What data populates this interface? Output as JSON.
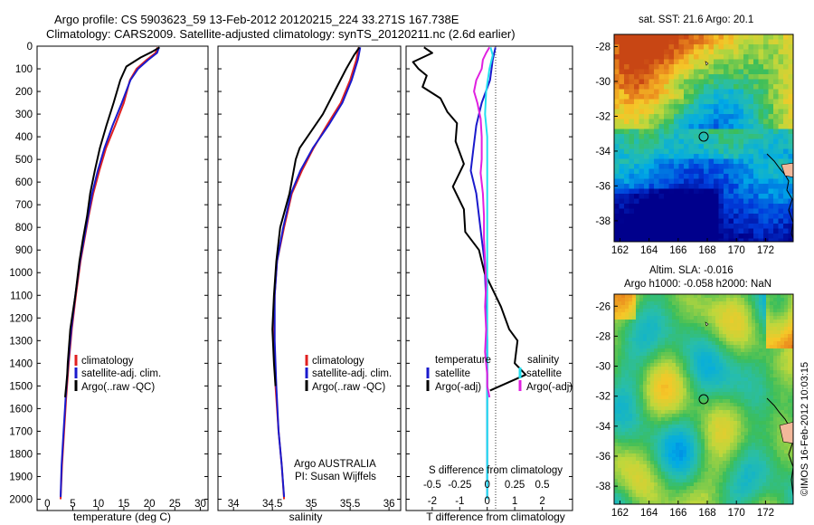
{
  "header": {
    "line1": "Argo profile: CS 5903623_59 13-Feb-2012 20120215_224 33.271S 167.738E",
    "line2": "Climatology: CARS2009. Satellite-adjusted climatology: synTS_20120211.nc (2.6d earlier)"
  },
  "footer_credit": "©IMOS 16-Feb-2012 10:03:15",
  "colors": {
    "climatology": "#e02020",
    "satellite": "#1a1acc",
    "argo": "#000000",
    "satellite_salinity": "#22e0f0",
    "argo_salinity": "#e020e0"
  },
  "chart_data": [
    {
      "id": "temperature",
      "type": "line",
      "xlabel": "temperature (deg C)",
      "xticks": [
        "0",
        "5",
        "10",
        "15",
        "20",
        "25",
        "30"
      ],
      "xlim": [
        -2,
        31.5
      ],
      "ylim": [
        0,
        2050
      ],
      "yticks": [
        "0",
        "100",
        "200",
        "300",
        "400",
        "500",
        "600",
        "700",
        "800",
        "900",
        "1000",
        "1100",
        "1200",
        "1300",
        "1400",
        "1500",
        "1600",
        "1700",
        "1800",
        "1900",
        "2000"
      ],
      "legend": [
        "climatology",
        "satellite-adj. clim.",
        "Argo(..raw -QC)"
      ],
      "series": [
        {
          "name": "climatology",
          "color_key": "climatology",
          "points": [
            [
              21.6,
              5
            ],
            [
              21.2,
              30
            ],
            [
              19.5,
              60
            ],
            [
              17.5,
              100
            ],
            [
              16.2,
              150
            ],
            [
              15,
              250
            ],
            [
              13.3,
              350
            ],
            [
              11.5,
              450
            ],
            [
              10.2,
              550
            ],
            [
              9,
              650
            ],
            [
              8.1,
              750
            ],
            [
              7.3,
              850
            ],
            [
              6.5,
              950
            ],
            [
              5.6,
              1100
            ],
            [
              4.8,
              1250
            ],
            [
              4.2,
              1400
            ],
            [
              3.7,
              1550
            ],
            [
              3.3,
              1700
            ],
            [
              2.9,
              1850
            ],
            [
              2.6,
              2000
            ]
          ]
        },
        {
          "name": "satellite-adj. clim.",
          "color_key": "satellite",
          "points": [
            [
              21.9,
              5
            ],
            [
              21.5,
              30
            ],
            [
              19.8,
              60
            ],
            [
              17.8,
              100
            ],
            [
              16.3,
              150
            ],
            [
              14.6,
              250
            ],
            [
              12.8,
              350
            ],
            [
              11.2,
              450
            ],
            [
              9.9,
              550
            ],
            [
              8.8,
              650
            ],
            [
              8,
              750
            ],
            [
              7.2,
              850
            ],
            [
              6.4,
              950
            ],
            [
              5.5,
              1100
            ],
            [
              4.7,
              1250
            ],
            [
              4.1,
              1400
            ],
            [
              3.6,
              1550
            ],
            [
              3.2,
              1700
            ],
            [
              2.8,
              1850
            ],
            [
              2.6,
              1990
            ]
          ]
        },
        {
          "name": "Argo(..raw -QC)",
          "color_key": "argo",
          "points": [
            [
              22,
              5
            ],
            [
              20.5,
              25
            ],
            [
              18.3,
              50
            ],
            [
              15.5,
              90
            ],
            [
              14.3,
              150
            ],
            [
              13,
              250
            ],
            [
              11.6,
              350
            ],
            [
              10.3,
              450
            ],
            [
              9.3,
              550
            ],
            [
              8.4,
              650
            ],
            [
              7.8,
              750
            ],
            [
              7,
              850
            ],
            [
              6.3,
              950
            ],
            [
              5.5,
              1100
            ],
            [
              4.5,
              1250
            ],
            [
              4,
              1400
            ],
            [
              3.9,
              1450
            ],
            [
              3.7,
              1500
            ],
            [
              3.5,
              1550
            ]
          ]
        }
      ]
    },
    {
      "id": "salinity",
      "type": "line",
      "xlabel": "salinity",
      "xticks": [
        "34",
        "34.5",
        "35",
        "35.5",
        "36"
      ],
      "xlim": [
        33.8,
        36.15
      ],
      "ylim": [
        0,
        2050
      ],
      "legend": [
        "climatology",
        "satellite-adj. clim.",
        "Argo(..raw -QC)"
      ],
      "annotation": [
        "Argo AUSTRALIA",
        "PI: Susan Wijffels"
      ],
      "series": [
        {
          "name": "climatology",
          "color_key": "climatology",
          "points": [
            [
              35.61,
              5
            ],
            [
              35.58,
              60
            ],
            [
              35.5,
              150
            ],
            [
              35.38,
              250
            ],
            [
              35.2,
              350
            ],
            [
              35.03,
              450
            ],
            [
              34.88,
              550
            ],
            [
              34.75,
              650
            ],
            [
              34.65,
              800
            ],
            [
              34.56,
              950
            ],
            [
              34.53,
              1100
            ],
            [
              34.52,
              1300
            ],
            [
              34.54,
              1500
            ],
            [
              34.58,
              1700
            ],
            [
              34.62,
              1850
            ],
            [
              34.65,
              2000
            ]
          ]
        },
        {
          "name": "satellite-adj. clim.",
          "color_key": "satellite",
          "points": [
            [
              35.63,
              5
            ],
            [
              35.6,
              60
            ],
            [
              35.52,
              150
            ],
            [
              35.4,
              250
            ],
            [
              35.22,
              350
            ],
            [
              35.02,
              450
            ],
            [
              34.86,
              550
            ],
            [
              34.74,
              650
            ],
            [
              34.64,
              800
            ],
            [
              34.56,
              950
            ],
            [
              34.53,
              1100
            ],
            [
              34.53,
              1300
            ],
            [
              34.55,
              1500
            ],
            [
              34.58,
              1700
            ],
            [
              34.62,
              1850
            ],
            [
              34.65,
              1990
            ]
          ]
        },
        {
          "name": "Argo(..raw -QC)",
          "color_key": "argo",
          "points": [
            [
              35.62,
              5
            ],
            [
              35.55,
              40
            ],
            [
              35.45,
              100
            ],
            [
              35.3,
              200
            ],
            [
              35.15,
              300
            ],
            [
              34.95,
              400
            ],
            [
              34.85,
              450
            ],
            [
              34.8,
              500
            ],
            [
              34.72,
              650
            ],
            [
              34.6,
              800
            ],
            [
              34.55,
              950
            ],
            [
              34.52,
              1100
            ],
            [
              34.5,
              1250
            ],
            [
              34.52,
              1400
            ],
            [
              34.54,
              1500
            ]
          ]
        }
      ]
    },
    {
      "id": "difference",
      "type": "line",
      "xlabel": "T difference from climatology",
      "xlabel_top": "S difference from climatology",
      "xticks_T": [
        "-2",
        "-1",
        "0",
        "1",
        "2"
      ],
      "xticks_S": [
        "-0.5",
        "-0.25",
        "0",
        "0.25",
        "0.5"
      ],
      "xlim_T": [
        -2.95,
        3.1
      ],
      "ylim": [
        0,
        2050
      ],
      "legend_temperature": {
        "title": "temperature",
        "items": [
          "satellite",
          "Argo(-adj)"
        ]
      },
      "legend_salinity": {
        "title": "salinity",
        "items": [
          "satellite",
          "Argo(-adj)"
        ]
      },
      "series": [
        {
          "name": "temperature satellite",
          "color_key": "satellite",
          "points": [
            [
              0.3,
              5
            ],
            [
              0.2,
              60
            ],
            [
              0.1,
              150
            ],
            [
              -0.2,
              250
            ],
            [
              -0.4,
              350
            ],
            [
              -0.5,
              450
            ],
            [
              -0.6,
              550
            ],
            [
              -0.4,
              650
            ],
            [
              -0.3,
              750
            ],
            [
              -0.2,
              850
            ],
            [
              -0.1,
              950
            ],
            [
              -0.05,
              1100
            ],
            [
              0,
              1300
            ],
            [
              0,
              1500
            ],
            [
              0,
              1700
            ],
            [
              0,
              1850
            ],
            [
              0,
              2000
            ]
          ]
        },
        {
          "name": "temperature Argo(-adj)",
          "color_key": "argo",
          "points": [
            [
              -2.3,
              5
            ],
            [
              -2,
              30
            ],
            [
              -2.7,
              70
            ],
            [
              -2.5,
              100
            ],
            [
              -2.2,
              130
            ],
            [
              -2.35,
              180
            ],
            [
              -1.7,
              230
            ],
            [
              -1.45,
              290
            ],
            [
              -1.1,
              340
            ],
            [
              -1.15,
              420
            ],
            [
              -0.85,
              520
            ],
            [
              -1.25,
              620
            ],
            [
              -0.85,
              720
            ],
            [
              -0.8,
              820
            ],
            [
              -0.3,
              900
            ],
            [
              -0.1,
              1000
            ],
            [
              0.5,
              1150
            ],
            [
              0.8,
              1250
            ],
            [
              1.1,
              1300
            ],
            [
              1.0,
              1400
            ],
            [
              1.4,
              1450
            ],
            [
              0.1,
              1520
            ]
          ]
        },
        {
          "name": "salinity satellite",
          "color_key": "satellite_salinity",
          "points": [
            [
              0.03,
              5
            ],
            [
              0.05,
              40
            ],
            [
              0.02,
              100
            ],
            [
              -0.01,
              200
            ],
            [
              -0.02,
              300
            ],
            [
              0,
              400
            ],
            [
              0,
              600
            ],
            [
              0,
              800
            ],
            [
              0,
              1000
            ],
            [
              0,
              1200
            ],
            [
              0,
              1400
            ],
            [
              0,
              1600
            ],
            [
              0,
              1800
            ],
            [
              0,
              2000
            ]
          ]
        },
        {
          "name": "salinity Argo(-adj)",
          "color_key": "argo_salinity",
          "points": [
            [
              0.02,
              5
            ],
            [
              -0.01,
              30
            ],
            [
              -0.04,
              60
            ],
            [
              -0.05,
              100
            ],
            [
              -0.1,
              150
            ],
            [
              -0.12,
              200
            ],
            [
              -0.09,
              250
            ],
            [
              -0.06,
              320
            ],
            [
              -0.05,
              400
            ],
            [
              -0.05,
              500
            ],
            [
              -0.06,
              560
            ],
            [
              -0.04,
              650
            ],
            [
              -0.03,
              750
            ],
            [
              -0.03,
              850
            ],
            [
              -0.02,
              950
            ],
            [
              -0.01,
              1050
            ],
            [
              -0.02,
              1150
            ],
            [
              -0.01,
              1250
            ],
            [
              -0.02,
              1350
            ],
            [
              0,
              1450
            ],
            [
              0,
              1500
            ],
            [
              0.02,
              1550
            ]
          ]
        }
      ]
    },
    {
      "id": "sst_map",
      "type": "heatmap",
      "title": "sat. SST: 21.6  Argo: 20.1",
      "xticks": [
        "162",
        "164",
        "166",
        "168",
        "170",
        "172"
      ],
      "yticks": [
        "-28",
        "-30",
        "-32",
        "-34",
        "-36",
        "-38"
      ],
      "xlim": [
        161.6,
        173.9
      ],
      "ylim": [
        -39.2,
        -27.3
      ],
      "profile_location": [
        167.738,
        -33.271
      ]
    },
    {
      "id": "sla_map",
      "type": "heatmap",
      "title_line1": "Altim. SLA: -0.016",
      "title_line2": "Argo h1000: -0.058  h2000: NaN",
      "xticks": [
        "162",
        "164",
        "166",
        "168",
        "170",
        "172"
      ],
      "yticks": [
        "-26",
        "-28",
        "-30",
        "-32",
        "-34",
        "-36",
        "-38"
      ],
      "xlim": [
        161.6,
        173.9
      ],
      "ylim": [
        -39.2,
        -25.2
      ],
      "profile_location": [
        167.738,
        -33.271
      ]
    }
  ]
}
